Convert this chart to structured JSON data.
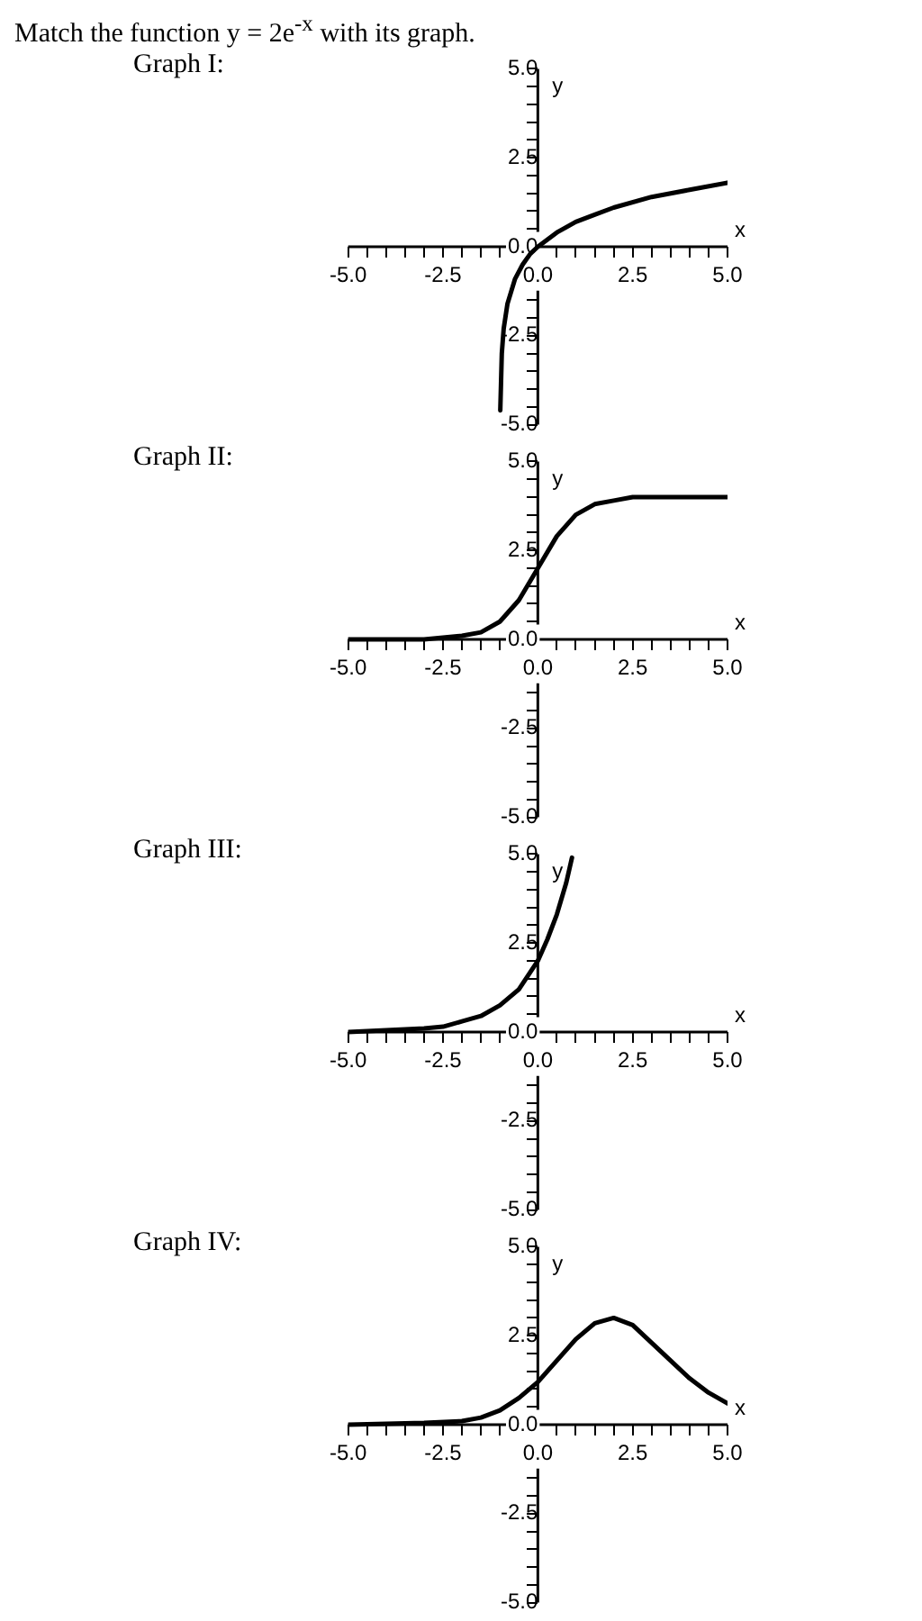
{
  "chart_data": [
    {
      "type": "line",
      "title": "Graph I:",
      "annotations": [
        "Match the function y = 2e$^{-x}$ with its graph."
      ],
      "xlabel": "x",
      "ylabel": "y",
      "xlim": [
        -5,
        5
      ],
      "ylim": [
        -5,
        5
      ],
      "xticks": [
        {
          "value": -5,
          "label": "-5.0"
        },
        {
          "value": -4.5,
          "label": null
        },
        {
          "value": -4,
          "label": null
        },
        {
          "value": -3.5,
          "label": null
        },
        {
          "value": -3,
          "label": null
        },
        {
          "value": -2.5,
          "label": "-2.5"
        },
        {
          "value": -2,
          "label": null
        },
        {
          "value": -1.5,
          "label": null
        },
        {
          "value": -1,
          "label": null
        },
        {
          "value": -0.5,
          "label": null
        },
        {
          "value": 0,
          "label": "0.0"
        },
        {
          "value": 0.5,
          "label": null
        },
        {
          "value": 1,
          "label": null
        },
        {
          "value": 1.5,
          "label": null
        },
        {
          "value": 2,
          "label": null
        },
        {
          "value": 2.5,
          "label": "2.5"
        },
        {
          "value": 3,
          "label": null
        },
        {
          "value": 3.5,
          "label": null
        },
        {
          "value": 4,
          "label": null
        },
        {
          "value": 4.5,
          "label": null
        },
        {
          "value": 5,
          "label": "5.0"
        }
      ],
      "yticks": [
        {
          "value": -5,
          "label": "-5.0"
        },
        {
          "value": -4.5,
          "label": null
        },
        {
          "value": -4,
          "label": null
        },
        {
          "value": -3.5,
          "label": null
        },
        {
          "value": -3,
          "label": null
        },
        {
          "value": -2.5,
          "label": "-2.5"
        },
        {
          "value": -2,
          "label": null
        },
        {
          "value": -1.5,
          "label": null
        },
        {
          "value": -1,
          "label": null
        },
        {
          "value": -0.5,
          "label": null
        },
        {
          "value": 0,
          "label": "0.0"
        },
        {
          "value": 0.5,
          "label": null
        },
        {
          "value": 1,
          "label": null
        },
        {
          "value": 1.5,
          "label": null
        },
        {
          "value": 2,
          "label": null
        },
        {
          "value": 2.5,
          "label": "2.5"
        },
        {
          "value": 3,
          "label": null
        },
        {
          "value": 3.5,
          "label": null
        },
        {
          "value": 4,
          "label": null
        },
        {
          "value": 4.5,
          "label": null
        },
        {
          "value": 5,
          "label": "5.0"
        }
      ],
      "x": [
        -0.99,
        -0.95,
        -0.9,
        -0.8,
        -0.6,
        -0.4,
        -0.2,
        0,
        0.5,
        1,
        1.5,
        2,
        3,
        4,
        5
      ],
      "series": [
        {
          "color": "#000000",
          "values": [
            -4.6,
            -3.0,
            -2.3,
            -1.6,
            -0.9,
            -0.5,
            -0.2,
            0,
            0.4,
            0.7,
            0.9,
            1.1,
            1.4,
            1.6,
            1.8
          ]
        }
      ]
    },
    {
      "type": "line",
      "title": "Graph II:",
      "xlabel": "x",
      "ylabel": "y",
      "xlim": [
        -5,
        5
      ],
      "ylim": [
        -5,
        5
      ],
      "xticks": [
        {
          "value": -5,
          "label": "-5.0"
        },
        {
          "value": -4.5,
          "label": null
        },
        {
          "value": -4,
          "label": null
        },
        {
          "value": -3.5,
          "label": null
        },
        {
          "value": -3,
          "label": null
        },
        {
          "value": -2.5,
          "label": "-2.5"
        },
        {
          "value": -2,
          "label": null
        },
        {
          "value": -1.5,
          "label": null
        },
        {
          "value": -1,
          "label": null
        },
        {
          "value": -0.5,
          "label": null
        },
        {
          "value": 0,
          "label": "0.0"
        },
        {
          "value": 0.5,
          "label": null
        },
        {
          "value": 1,
          "label": null
        },
        {
          "value": 1.5,
          "label": null
        },
        {
          "value": 2,
          "label": null
        },
        {
          "value": 2.5,
          "label": "2.5"
        },
        {
          "value": 3,
          "label": null
        },
        {
          "value": 3.5,
          "label": null
        },
        {
          "value": 4,
          "label": null
        },
        {
          "value": 4.5,
          "label": null
        },
        {
          "value": 5,
          "label": "5.0"
        }
      ],
      "yticks": [
        {
          "value": -5,
          "label": "-5.0"
        },
        {
          "value": -4.5,
          "label": null
        },
        {
          "value": -4,
          "label": null
        },
        {
          "value": -3.5,
          "label": null
        },
        {
          "value": -3,
          "label": null
        },
        {
          "value": -2.5,
          "label": "-2.5"
        },
        {
          "value": -2,
          "label": null
        },
        {
          "value": -1.5,
          "label": null
        },
        {
          "value": -1,
          "label": null
        },
        {
          "value": -0.5,
          "label": null
        },
        {
          "value": 0,
          "label": "0.0"
        },
        {
          "value": 0.5,
          "label": null
        },
        {
          "value": 1,
          "label": null
        },
        {
          "value": 1.5,
          "label": null
        },
        {
          "value": 2,
          "label": null
        },
        {
          "value": 2.5,
          "label": "2.5"
        },
        {
          "value": 3,
          "label": null
        },
        {
          "value": 3.5,
          "label": null
        },
        {
          "value": 4,
          "label": null
        },
        {
          "value": 4.5,
          "label": null
        },
        {
          "value": 5,
          "label": "5.0"
        }
      ],
      "x": [
        -5,
        -4,
        -3,
        -2.5,
        -2,
        -1.5,
        -1,
        -0.5,
        0,
        0.5,
        1,
        1.5,
        2,
        2.5,
        3,
        4,
        5
      ],
      "series": [
        {
          "color": "#000000",
          "values": [
            0,
            0,
            0,
            0.05,
            0.1,
            0.2,
            0.5,
            1.1,
            2,
            2.9,
            3.5,
            3.8,
            3.9,
            4,
            4,
            4,
            4
          ]
        }
      ]
    },
    {
      "type": "line",
      "title": "Graph III:",
      "xlabel": "x",
      "ylabel": "y",
      "xlim": [
        -5,
        5
      ],
      "ylim": [
        -5,
        5
      ],
      "xticks": [
        {
          "value": -5,
          "label": "-5.0"
        },
        {
          "value": -4.5,
          "label": null
        },
        {
          "value": -4,
          "label": null
        },
        {
          "value": -3.5,
          "label": null
        },
        {
          "value": -3,
          "label": null
        },
        {
          "value": -2.5,
          "label": "-2.5"
        },
        {
          "value": -2,
          "label": null
        },
        {
          "value": -1.5,
          "label": null
        },
        {
          "value": -1,
          "label": null
        },
        {
          "value": -0.5,
          "label": null
        },
        {
          "value": 0,
          "label": "0.0"
        },
        {
          "value": 0.5,
          "label": null
        },
        {
          "value": 1,
          "label": null
        },
        {
          "value": 1.5,
          "label": null
        },
        {
          "value": 2,
          "label": null
        },
        {
          "value": 2.5,
          "label": "2.5"
        },
        {
          "value": 3,
          "label": null
        },
        {
          "value": 3.5,
          "label": null
        },
        {
          "value": 4,
          "label": null
        },
        {
          "value": 4.5,
          "label": null
        },
        {
          "value": 5,
          "label": "5.0"
        }
      ],
      "yticks": [
        {
          "value": -5,
          "label": "-5.0"
        },
        {
          "value": -4.5,
          "label": null
        },
        {
          "value": -4,
          "label": null
        },
        {
          "value": -3.5,
          "label": null
        },
        {
          "value": -3,
          "label": null
        },
        {
          "value": -2.5,
          "label": "-2.5"
        },
        {
          "value": -2,
          "label": null
        },
        {
          "value": -1.5,
          "label": null
        },
        {
          "value": -1,
          "label": null
        },
        {
          "value": -0.5,
          "label": null
        },
        {
          "value": 0,
          "label": "0.0"
        },
        {
          "value": 0.5,
          "label": null
        },
        {
          "value": 1,
          "label": null
        },
        {
          "value": 1.5,
          "label": null
        },
        {
          "value": 2,
          "label": null
        },
        {
          "value": 2.5,
          "label": "2.5"
        },
        {
          "value": 3,
          "label": null
        },
        {
          "value": 3.5,
          "label": null
        },
        {
          "value": 4,
          "label": null
        },
        {
          "value": 4.5,
          "label": null
        },
        {
          "value": 5,
          "label": "5.0"
        }
      ],
      "x": [
        -5,
        -4,
        -3,
        -2.5,
        -2,
        -1.5,
        -1,
        -0.5,
        0,
        0.25,
        0.5,
        0.75,
        0.9
      ],
      "series": [
        {
          "color": "#000000",
          "values": [
            0,
            0.05,
            0.1,
            0.15,
            0.3,
            0.45,
            0.75,
            1.2,
            2,
            2.6,
            3.3,
            4.2,
            4.9
          ]
        }
      ]
    },
    {
      "type": "line",
      "title": "Graph IV:",
      "xlabel": "x",
      "ylabel": "y",
      "xlim": [
        -5,
        5
      ],
      "ylim": [
        -5,
        5
      ],
      "xticks": [
        {
          "value": -5,
          "label": "-5.0"
        },
        {
          "value": -4.5,
          "label": null
        },
        {
          "value": -4,
          "label": null
        },
        {
          "value": -3.5,
          "label": null
        },
        {
          "value": -3,
          "label": null
        },
        {
          "value": -2.5,
          "label": "-2.5"
        },
        {
          "value": -2,
          "label": null
        },
        {
          "value": -1.5,
          "label": null
        },
        {
          "value": -1,
          "label": null
        },
        {
          "value": -0.5,
          "label": null
        },
        {
          "value": 0,
          "label": "0.0"
        },
        {
          "value": 0.5,
          "label": null
        },
        {
          "value": 1,
          "label": null
        },
        {
          "value": 1.5,
          "label": null
        },
        {
          "value": 2,
          "label": null
        },
        {
          "value": 2.5,
          "label": "2.5"
        },
        {
          "value": 3,
          "label": null
        },
        {
          "value": 3.5,
          "label": null
        },
        {
          "value": 4,
          "label": null
        },
        {
          "value": 4.5,
          "label": null
        },
        {
          "value": 5,
          "label": "5.0"
        }
      ],
      "yticks": [
        {
          "value": -5,
          "label": "-5.0"
        },
        {
          "value": -4.5,
          "label": null
        },
        {
          "value": -4,
          "label": null
        },
        {
          "value": -3.5,
          "label": null
        },
        {
          "value": -3,
          "label": null
        },
        {
          "value": -2.5,
          "label": "-2.5"
        },
        {
          "value": -2,
          "label": null
        },
        {
          "value": -1.5,
          "label": null
        },
        {
          "value": -1,
          "label": null
        },
        {
          "value": -0.5,
          "label": null
        },
        {
          "value": 0,
          "label": "0.0"
        },
        {
          "value": 0.5,
          "label": null
        },
        {
          "value": 1,
          "label": null
        },
        {
          "value": 1.5,
          "label": null
        },
        {
          "value": 2,
          "label": null
        },
        {
          "value": 2.5,
          "label": "2.5"
        },
        {
          "value": 3,
          "label": null
        },
        {
          "value": 3.5,
          "label": null
        },
        {
          "value": 4,
          "label": null
        },
        {
          "value": 4.5,
          "label": null
        },
        {
          "value": 5,
          "label": "5.0"
        }
      ],
      "x": [
        -5,
        -3,
        -2,
        -1.5,
        -1,
        -0.5,
        0,
        0.5,
        1,
        1.5,
        2,
        2.5,
        3,
        3.5,
        4,
        4.5,
        5
      ],
      "series": [
        {
          "color": "#000000",
          "values": [
            0,
            0.05,
            0.1,
            0.2,
            0.4,
            0.75,
            1.2,
            1.8,
            2.4,
            2.85,
            3,
            2.8,
            2.3,
            1.8,
            1.3,
            0.9,
            0.6
          ]
        }
      ]
    }
  ]
}
